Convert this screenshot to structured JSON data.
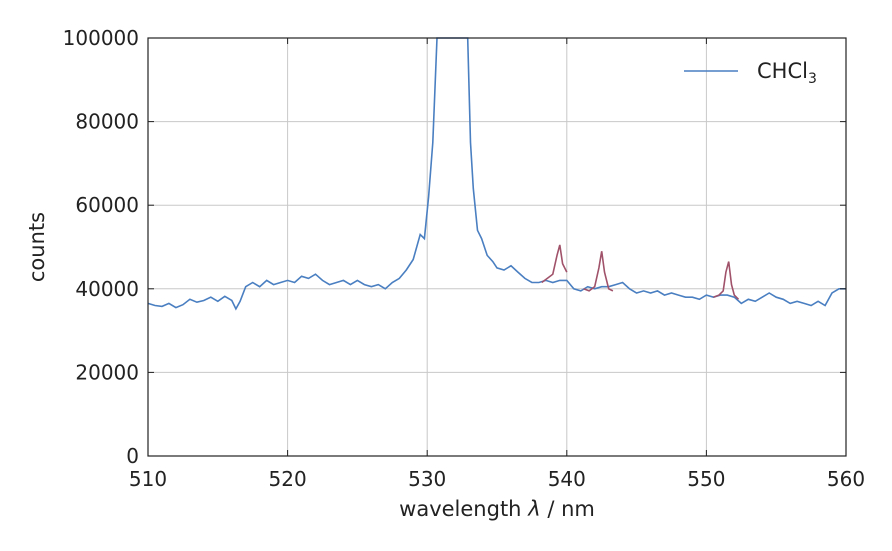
{
  "chart_data": {
    "type": "line",
    "title": "",
    "xlabel_prefix": "wavelength",
    "xlabel_symbol": "λ",
    "xlabel_suffix": "/ nm",
    "ylabel": "counts",
    "xlim": [
      510,
      560
    ],
    "ylim": [
      0,
      100000
    ],
    "xticks": [
      510,
      520,
      530,
      540,
      550,
      560
    ],
    "yticks": [
      0,
      20000,
      40000,
      60000,
      80000,
      100000
    ],
    "grid": true,
    "legend_position": "top-right",
    "series": [
      {
        "name": "CHCl",
        "name_subscript": "3",
        "color": "#4a7fc1",
        "x": [
          510.0,
          510.5,
          511.0,
          511.5,
          512.0,
          512.5,
          513.0,
          513.5,
          514.0,
          514.5,
          515.0,
          515.5,
          516.0,
          516.3,
          516.6,
          517.0,
          517.5,
          518.0,
          518.5,
          519.0,
          519.5,
          520.0,
          520.5,
          521.0,
          521.5,
          522.0,
          522.5,
          523.0,
          523.5,
          524.0,
          524.5,
          525.0,
          525.5,
          526.0,
          526.5,
          527.0,
          527.5,
          528.0,
          528.5,
          529.0,
          529.5,
          529.8,
          530.1,
          530.4,
          530.7,
          530.9,
          531.1,
          531.3,
          531.5,
          531.8,
          532.1,
          532.4,
          532.7,
          532.9,
          533.1,
          533.3,
          533.6,
          533.9,
          534.3,
          534.7,
          535.0,
          535.5,
          536.0,
          536.5,
          537.0,
          537.5,
          538.0,
          538.5,
          539.0,
          539.5,
          540.0,
          540.5,
          541.0,
          541.5,
          542.0,
          542.5,
          543.0,
          543.5,
          544.0,
          544.5,
          545.0,
          545.5,
          546.0,
          546.5,
          547.0,
          547.5,
          548.0,
          548.5,
          549.0,
          549.5,
          550.0,
          550.5,
          551.0,
          551.5,
          552.0,
          552.5,
          553.0,
          553.5,
          554.0,
          554.5,
          555.0,
          555.5,
          556.0,
          556.5,
          557.0,
          557.5,
          558.0,
          558.5,
          559.0,
          559.5,
          560.0
        ],
        "y": [
          36500,
          36000,
          35800,
          36500,
          35500,
          36200,
          37500,
          36800,
          37200,
          38000,
          37000,
          38200,
          37200,
          35200,
          37000,
          40500,
          41500,
          40500,
          42000,
          41000,
          41500,
          42000,
          41500,
          43000,
          42500,
          43500,
          42000,
          41000,
          41500,
          42000,
          41000,
          42000,
          41000,
          40500,
          41000,
          40000,
          41500,
          42500,
          44500,
          47000,
          53000,
          52000,
          62000,
          75000,
          100000,
          100000,
          100000,
          100000,
          100000,
          100000,
          100000,
          100000,
          100000,
          100000,
          75000,
          64000,
          54000,
          52000,
          48000,
          46500,
          45000,
          44500,
          45500,
          44000,
          42500,
          41500,
          41500,
          42000,
          41500,
          42000,
          42000,
          40000,
          39500,
          40500,
          40000,
          40500,
          40500,
          41000,
          41500,
          40000,
          39000,
          39500,
          39000,
          39500,
          38500,
          39000,
          38500,
          38000,
          38000,
          37500,
          38500,
          38000,
          38500,
          38500,
          38000,
          36500,
          37500,
          37000,
          38000,
          39000,
          38000,
          37500,
          36500,
          37000,
          36500,
          36000,
          37000,
          36000,
          39000,
          40000,
          40000
        ]
      }
    ],
    "highlight_segments": [
      {
        "color": "#a0526a",
        "x": [
          538.2,
          538.6,
          539.0,
          539.3,
          539.5,
          539.7,
          540.0
        ],
        "y": [
          41500,
          42500,
          43500,
          48000,
          50500,
          46000,
          44000
        ]
      },
      {
        "color": "#a0526a",
        "x": [
          541.2,
          541.6,
          542.0,
          542.3,
          542.5,
          542.7,
          543.0,
          543.3
        ],
        "y": [
          40000,
          39500,
          40500,
          45000,
          49000,
          44000,
          40000,
          39500
        ]
      },
      {
        "color": "#a0526a",
        "x": [
          550.5,
          550.9,
          551.2,
          551.4,
          551.6,
          551.8,
          552.0,
          552.3
        ],
        "y": [
          38000,
          38500,
          39500,
          44000,
          46500,
          41000,
          38500,
          37500
        ]
      }
    ]
  }
}
